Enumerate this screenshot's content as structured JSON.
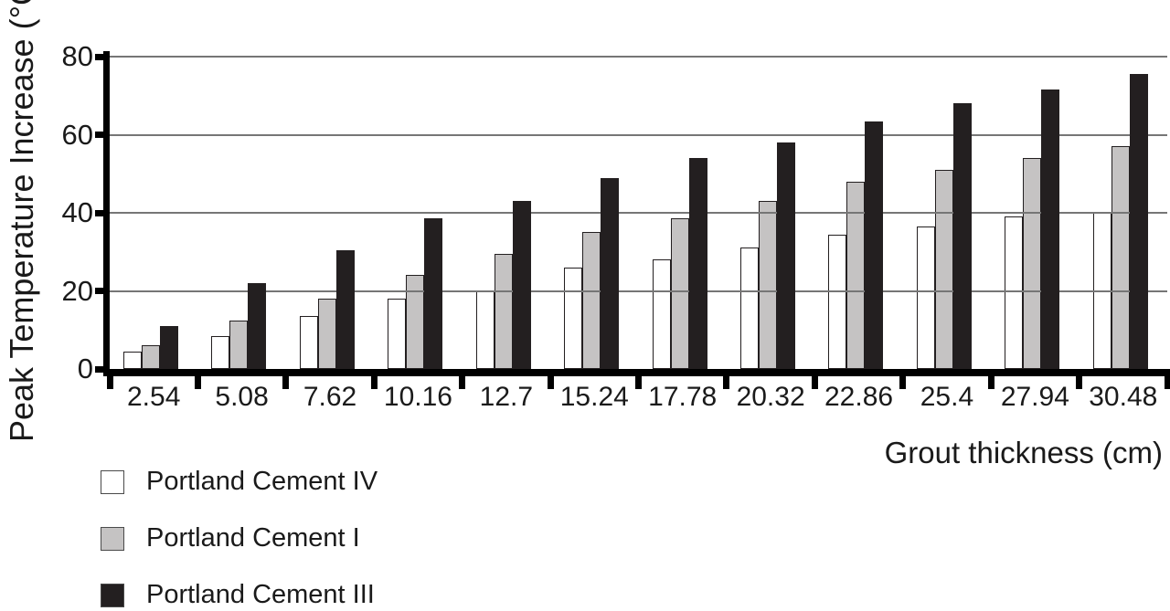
{
  "chart_data": {
    "type": "bar",
    "title": "",
    "xlabel": "Grout thickness (cm)",
    "ylabel": "Peak Temperature Increase (°C)",
    "categories": [
      "2.54",
      "5.08",
      "7.62",
      "10.16",
      "12.7",
      "15.24",
      "17.78",
      "20.32",
      "22.86",
      "25.4",
      "27.94",
      "30.48"
    ],
    "series": [
      {
        "name": "Portland Cement IV",
        "fill": "transparent",
        "swatch": "#ffffff",
        "values": [
          4.5,
          8.5,
          13.5,
          18,
          20,
          26,
          28,
          31,
          34.5,
          36.5,
          39,
          40
        ]
      },
      {
        "name": "Portland Cement I",
        "fill": "#c5c3c3",
        "swatch": "#c5c3c3",
        "values": [
          6,
          12.5,
          18,
          24,
          29.5,
          35,
          38.5,
          43,
          48,
          51,
          54,
          57
        ]
      },
      {
        "name": "Portland Cement III",
        "fill": "#231f20",
        "swatch": "#231f20",
        "values": [
          11,
          22,
          30.5,
          38.5,
          43,
          49,
          54,
          58,
          63.5,
          68,
          71.5,
          75.5
        ]
      }
    ],
    "ylim": [
      0,
      80
    ],
    "yticks": [
      0,
      20,
      40,
      60,
      80
    ],
    "grid": true,
    "legend_position": "bottom-left"
  },
  "colors": {
    "grid": "#767676",
    "axis": "#000000",
    "bar_border": "#231f20",
    "text": "#1a1a1a"
  }
}
